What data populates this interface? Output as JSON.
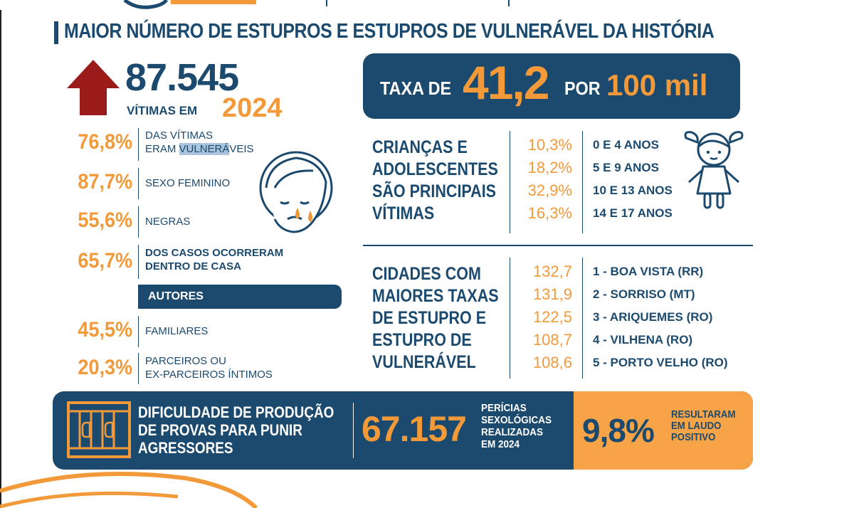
{
  "headline": "MAIOR NÚMERO DE ESTUPROS E ESTUPROS DE VULNERÁVEL DA HISTÓRIA",
  "total": {
    "number": "87.545",
    "label": "VÍTIMAS EM",
    "year": "2024"
  },
  "rate": {
    "prefix": "TAXA DE",
    "value": "41,2",
    "per": "POR",
    "unit": "100 mil"
  },
  "stats": [
    {
      "pct": "76,8%",
      "line1": "DAS VÍTIMAS",
      "line2_a": "ERAM ",
      "line2_hl": "VULNERÁ",
      "line2_b": "VEIS"
    },
    {
      "pct": "87,7%",
      "label": "SEXO FEMININO"
    },
    {
      "pct": "55,6%",
      "label": "NEGRAS"
    },
    {
      "pct": "65,7%",
      "line1": "DOS CASOS OCORRERAM",
      "line2": "DENTRO DE CASA"
    }
  ],
  "authors": {
    "title": "AUTORES",
    "items": [
      {
        "pct": "45,5%",
        "label": "FAMILIARES"
      },
      {
        "pct": "20,3%",
        "line1": "PARCEIROS OU",
        "line2": "EX-PARCEIROS ÍNTIMOS"
      }
    ]
  },
  "children": {
    "title": [
      "CRIANÇAS E",
      "ADOLESCENTES",
      "SÃO PRINCIPAIS",
      "VÍTIMAS"
    ],
    "rows": [
      {
        "pct": "10,3%",
        "label": "0 E 4 ANOS"
      },
      {
        "pct": "18,2%",
        "label": "5 E 9 ANOS"
      },
      {
        "pct": "32,9%",
        "label": "10 E 13 ANOS"
      },
      {
        "pct": "16,3%",
        "label": "14 E 17 ANOS"
      }
    ]
  },
  "cities": {
    "title": [
      "CIDADES COM",
      "MAIORES TAXAS",
      "DE ESTUPRO E",
      "ESTUPRO DE",
      "VULNERÁVEL"
    ],
    "rows": [
      {
        "value": "132,7",
        "label": "1 - BOA VISTA (RR)"
      },
      {
        "value": "131,9",
        "label": "2 - SORRISO (MT)"
      },
      {
        "value": "122,5",
        "label": "3 - ARIQUEMES (RO)"
      },
      {
        "value": "108,7",
        "label": "4 - VILHENA (RO)"
      },
      {
        "value": "108,6",
        "label": "5 - PORTO VELHO (RO)"
      }
    ]
  },
  "bottom": {
    "difficulty": [
      "DIFICULDADE DE PRODUÇÃO",
      "DE PROVAS PARA PUNIR",
      "AGRESSORES"
    ],
    "exams_number": "67.157",
    "exams_label": [
      "PERÍCIAS",
      "SEXOLÓGICAS",
      "REALIZADAS",
      "EM 2024"
    ],
    "positive_pct": "9,8%",
    "positive_label": [
      "RESULTARAM",
      "EM LAUDO",
      "POSITIVO"
    ]
  },
  "colors": {
    "navy": "#1b4a6e",
    "orange": "#f29a3a",
    "dark_red": "#9b1b1b"
  }
}
